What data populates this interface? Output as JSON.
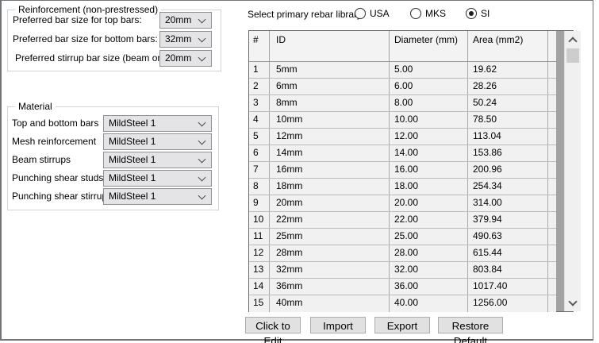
{
  "reinforcement_group": {
    "title": "Reinforcement (non-prestressed)",
    "rows": [
      {
        "label": "Preferred bar size for top bars:",
        "value": "20mm"
      },
      {
        "label": "Preferred bar size for bottom bars:",
        "value": "32mm"
      },
      {
        "label": "Preferred stirrup bar size (beam only):",
        "value": "20mm"
      }
    ]
  },
  "material_group": {
    "title": "Material",
    "rows": [
      {
        "label": "Top and bottom bars",
        "value": "MildSteel 1"
      },
      {
        "label": "Mesh reinforcement",
        "value": "MildSteel 1"
      },
      {
        "label": "Beam stirrups",
        "value": "MildSteel 1"
      },
      {
        "label": "Punching shear studs",
        "value": "MildSteel 1"
      },
      {
        "label": "Punching shear stirrups",
        "value": "MildSteel 1"
      }
    ]
  },
  "library_selector": {
    "label": "Select primary rebar library",
    "options": [
      {
        "label": "USA",
        "selected": false
      },
      {
        "label": "MKS",
        "selected": false
      },
      {
        "label": "SI",
        "selected": true
      }
    ]
  },
  "table": {
    "columns": [
      "#",
      "ID",
      "Diameter (mm)",
      "Area (mm2)"
    ],
    "rows": [
      [
        "1",
        "5mm",
        "5.00",
        "19.62"
      ],
      [
        "2",
        "6mm",
        "6.00",
        "28.26"
      ],
      [
        "3",
        "8mm",
        "8.00",
        "50.24"
      ],
      [
        "4",
        "10mm",
        "10.00",
        "78.50"
      ],
      [
        "5",
        "12mm",
        "12.00",
        "113.04"
      ],
      [
        "6",
        "14mm",
        "14.00",
        "153.86"
      ],
      [
        "7",
        "16mm",
        "16.00",
        "200.96"
      ],
      [
        "8",
        "18mm",
        "18.00",
        "254.34"
      ],
      [
        "9",
        "20mm",
        "20.00",
        "314.00"
      ],
      [
        "10",
        "22mm",
        "22.00",
        "379.94"
      ],
      [
        "11",
        "25mm",
        "25.00",
        "490.63"
      ],
      [
        "12",
        "28mm",
        "28.00",
        "615.44"
      ],
      [
        "13",
        "32mm",
        "32.00",
        "803.84"
      ],
      [
        "14",
        "36mm",
        "36.00",
        "1017.40"
      ],
      [
        "15",
        "40mm",
        "40.00",
        "1256.00"
      ]
    ]
  },
  "buttons": {
    "edit": "Click to Edit",
    "import": "Import",
    "export": "Export",
    "restore": "Restore Default"
  }
}
